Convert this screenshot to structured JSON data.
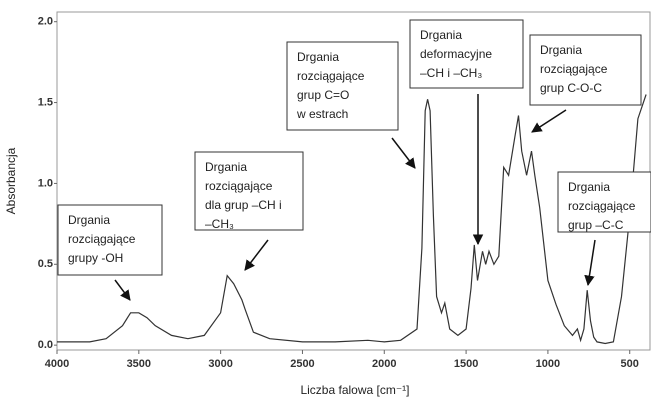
{
  "chart_data": {
    "type": "line",
    "x_label": "Liczba falowa [cm⁻¹]",
    "y_label": "Absorbancja",
    "xlim": [
      4000,
      370
    ],
    "ylim": [
      -0.03,
      2.06
    ],
    "xticks": [
      4000,
      3500,
      3000,
      2500,
      2000,
      1500,
      1000,
      500
    ],
    "yticks": [
      {
        "value": 0,
        "label": "0.0"
      },
      {
        "value": 0.5,
        "label": "0.5"
      },
      {
        "value": 1,
        "label": "1.0"
      },
      {
        "value": 1.5,
        "label": "1.5"
      },
      {
        "value": 2,
        "label": "2.0"
      }
    ],
    "series": [
      {
        "color": "#333333",
        "x": [
          4000,
          3800,
          3700,
          3600,
          3550,
          3500,
          3450,
          3400,
          3300,
          3200,
          3100,
          3000,
          2960,
          2920,
          2870,
          2850,
          2800,
          2700,
          2500,
          2300,
          2100,
          2000,
          1900,
          1800,
          1770,
          1750,
          1735,
          1720,
          1700,
          1680,
          1650,
          1630,
          1600,
          1550,
          1500,
          1470,
          1450,
          1430,
          1400,
          1380,
          1360,
          1330,
          1300,
          1270,
          1240,
          1200,
          1180,
          1160,
          1130,
          1100,
          1080,
          1050,
          1000,
          950,
          900,
          850,
          820,
          800,
          780,
          760,
          740,
          720,
          700,
          650,
          600,
          550,
          500,
          450,
          400
        ],
        "values": [
          0.02,
          0.02,
          0.04,
          0.12,
          0.2,
          0.2,
          0.17,
          0.12,
          0.06,
          0.04,
          0.06,
          0.2,
          0.43,
          0.38,
          0.28,
          0.22,
          0.08,
          0.04,
          0.02,
          0.02,
          0.03,
          0.02,
          0.03,
          0.1,
          0.6,
          1.45,
          1.52,
          1.45,
          0.8,
          0.3,
          0.2,
          0.26,
          0.1,
          0.06,
          0.1,
          0.35,
          0.62,
          0.4,
          0.58,
          0.5,
          0.58,
          0.5,
          0.55,
          1.1,
          1.05,
          1.3,
          1.42,
          1.2,
          1.05,
          1.2,
          1.05,
          0.85,
          0.4,
          0.25,
          0.12,
          0.06,
          0.1,
          0.03,
          0.1,
          0.34,
          0.15,
          0.05,
          0.02,
          0.01,
          0.02,
          0.3,
          0.8,
          1.4,
          1.55
        ]
      }
    ],
    "annotations": [
      {
        "lines": [
          "Drgania",
          "rozciągające",
          "grupy -OH"
        ]
      },
      {
        "lines": [
          "Drgania",
          "rozciągające",
          "dla grup –CH i",
          "–CH₃"
        ]
      },
      {
        "lines": [
          "Drgania",
          "rozciągające",
          "grup C=O",
          "w estrach"
        ]
      },
      {
        "lines": [
          "Drgania",
          "deformacyjne",
          "–CH i –CH₃"
        ]
      },
      {
        "lines": [
          "Drgania",
          "rozciągające",
          "grup C-O-C"
        ]
      },
      {
        "lines": [
          "Drgania",
          "rozciągające",
          "grup –C-C"
        ]
      }
    ]
  }
}
